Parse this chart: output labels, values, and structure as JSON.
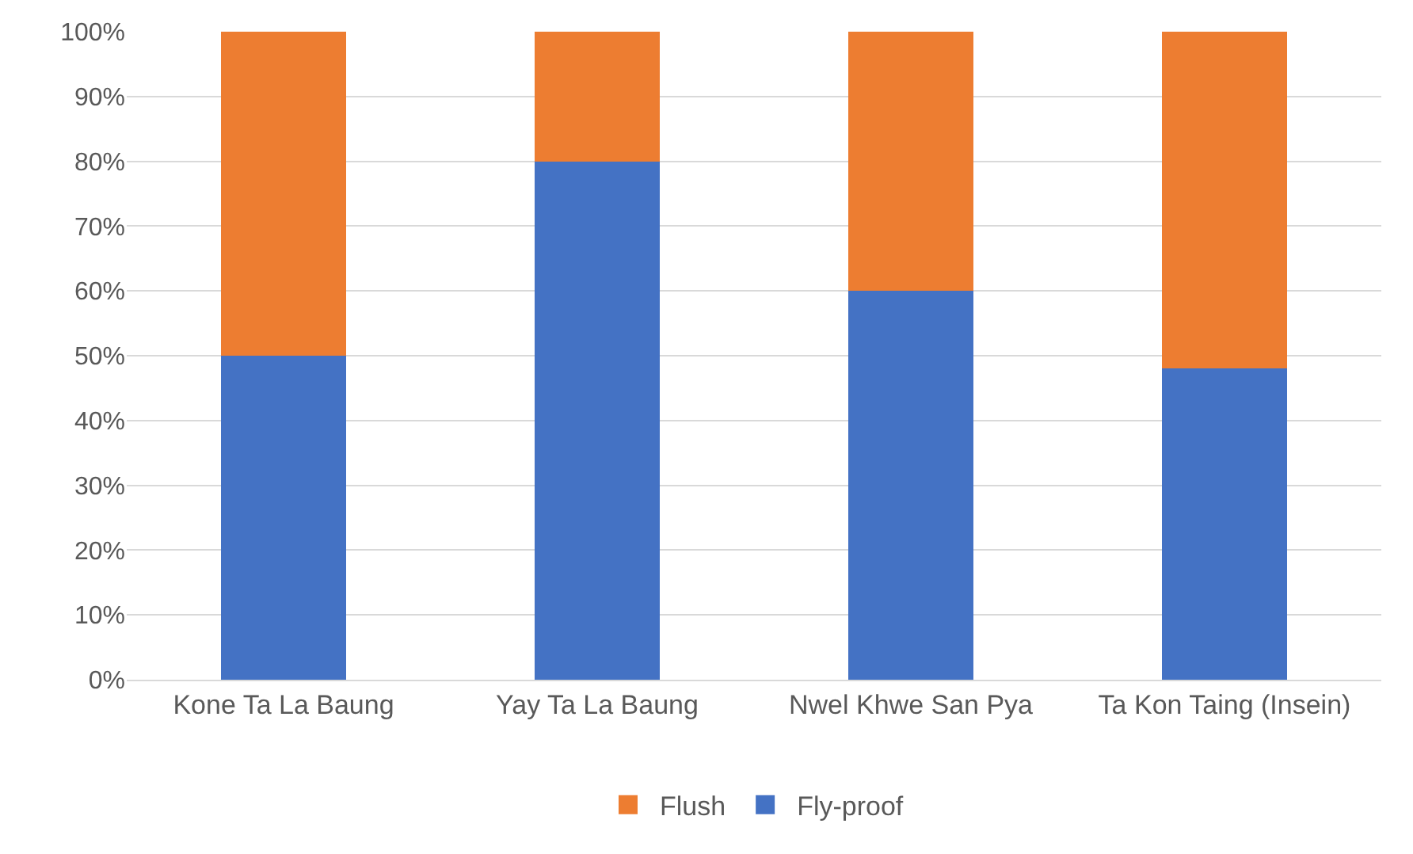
{
  "chart_data": {
    "type": "bar",
    "stacked": true,
    "categories": [
      "Kone Ta La Baung",
      "Yay Ta La Baung",
      "Nwel Khwe San Pya",
      "Ta Kon Taing (Insein)"
    ],
    "series": [
      {
        "name": "Fly-proof",
        "color": "#4472c4",
        "values": [
          50,
          80,
          60,
          48
        ]
      },
      {
        "name": "Flush",
        "color": "#ed7d31",
        "values": [
          50,
          20,
          40,
          52
        ]
      }
    ],
    "ylim": [
      0,
      100
    ],
    "yticks": [
      {
        "value": 0,
        "label": "0%"
      },
      {
        "value": 10,
        "label": "10%"
      },
      {
        "value": 20,
        "label": "20%"
      },
      {
        "value": 30,
        "label": "30%"
      },
      {
        "value": 40,
        "label": "40%"
      },
      {
        "value": 50,
        "label": "50%"
      },
      {
        "value": 60,
        "label": "60%"
      },
      {
        "value": 70,
        "label": "70%"
      },
      {
        "value": 80,
        "label": "80%"
      },
      {
        "value": 90,
        "label": "90%"
      },
      {
        "value": 100,
        "label": "100%"
      }
    ],
    "grid": "y",
    "legend": "bottom"
  }
}
